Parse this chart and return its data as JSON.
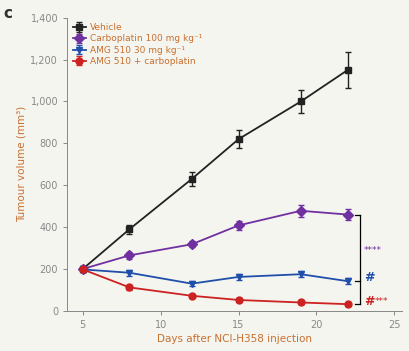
{
  "title_label": "c",
  "xlabel": "Days after NCI-H358 injection",
  "ylabel": "Tumour volume (mm³)",
  "xlim": [
    4,
    25.5
  ],
  "ylim": [
    0,
    1400
  ],
  "yticks": [
    0,
    200,
    400,
    600,
    800,
    1000,
    1200,
    1400
  ],
  "ytick_labels": [
    "0",
    "200",
    "400",
    "600",
    "800",
    "1,000",
    "1,200",
    "1,400"
  ],
  "xticks": [
    5,
    10,
    15,
    20,
    25
  ],
  "text_color": "#c87030",
  "series": [
    {
      "label": "Vehicle",
      "color": "#222222",
      "marker": "s",
      "x": [
        5,
        8,
        12,
        15,
        19,
        22
      ],
      "y": [
        200,
        390,
        630,
        820,
        1000,
        1150
      ],
      "yerr": [
        12,
        22,
        32,
        42,
        55,
        85
      ]
    },
    {
      "label": "Carboplatin 100 mg kg⁻¹",
      "color": "#7030a0",
      "marker": "D",
      "x": [
        5,
        8,
        12,
        15,
        19,
        22
      ],
      "y": [
        200,
        265,
        318,
        408,
        478,
        460
      ],
      "yerr": [
        10,
        18,
        15,
        22,
        28,
        28
      ]
    },
    {
      "label": "AMG 510 30 mg kg⁻¹",
      "color": "#1f4faa",
      "marker": "v",
      "x": [
        5,
        8,
        12,
        15,
        19,
        22
      ],
      "y": [
        198,
        182,
        130,
        162,
        175,
        142
      ],
      "yerr": [
        10,
        14,
        12,
        14,
        14,
        14
      ]
    },
    {
      "label": "AMG 510 + carboplatin",
      "color": "#cc2222",
      "marker": "o",
      "x": [
        5,
        8,
        12,
        15,
        19,
        22
      ],
      "y": [
        198,
        112,
        72,
        52,
        40,
        32
      ],
      "yerr": [
        10,
        12,
        9,
        8,
        7,
        7
      ]
    }
  ],
  "bracket_x": 22.8,
  "bracket_y_top": 460,
  "bracket_y_mid": 142,
  "bracket_y_bot": 32,
  "annot_stars_color": "#7030a0",
  "annot_hash_blue_color": "#1f4faa",
  "annot_hash_red_color": "#cc2222",
  "annot_stars_red_color": "#cc2222",
  "background_color": "#f5f5f0",
  "spine_color": "#888888",
  "tick_label_color": "#c87030"
}
